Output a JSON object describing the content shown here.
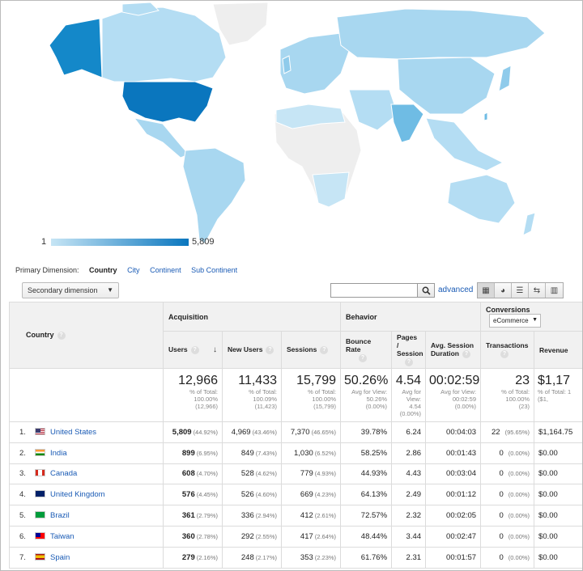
{
  "map": {
    "legend_min": "1",
    "legend_max": "5,809",
    "colors": {
      "low": "#c6e5f5",
      "mid": "#9fd2ed",
      "high": "#0a76be",
      "none": "#eeeeee"
    }
  },
  "dimensions": {
    "label": "Primary Dimension:",
    "options": [
      "Country",
      "City",
      "Continent",
      "Sub Continent"
    ]
  },
  "toolbar": {
    "secondary_dimension": "Secondary dimension",
    "search_value": "",
    "advanced": "advanced"
  },
  "table": {
    "groups": {
      "acquisition": "Acquisition",
      "behavior": "Behavior",
      "conversions": "Conversions",
      "conversions_select": "eCommerce"
    },
    "headers": {
      "country": "Country",
      "users": "Users",
      "new_users": "New Users",
      "sessions": "Sessions",
      "bounce_rate": "Bounce Rate",
      "pages_session": "Pages / Session",
      "avg_session_duration": "Avg. Session Duration",
      "transactions": "Transactions",
      "revenue": "Revenue"
    },
    "totals": {
      "users": {
        "value": "12,966",
        "l1": "% of Total:",
        "l2": "100.00%",
        "l3": "(12,966)"
      },
      "new_users": {
        "value": "11,433",
        "l1": "% of Total:",
        "l2": "100.09%",
        "l3": "(11,423)"
      },
      "sessions": {
        "value": "15,799",
        "l1": "% of Total:",
        "l2": "100.00%",
        "l3": "(15,799)"
      },
      "bounce_rate": {
        "value": "50.26%",
        "l1": "Avg for View:",
        "l2": "50.26%",
        "l3": "(0.00%)"
      },
      "pages_session": {
        "value": "4.54",
        "l1": "Avg for View:",
        "l2": "4.54",
        "l3": "(0.00%)"
      },
      "avg_session_duration": {
        "value": "00:02:59",
        "l1": "Avg for View:",
        "l2": "00:02:59",
        "l3": "(0.00%)"
      },
      "transactions": {
        "value": "23",
        "l1": "% of Total:",
        "l2": "100.00%",
        "l3": "(23)"
      },
      "revenue": {
        "value": "$1,17",
        "l1": "% of Total: 1",
        "l2": "($1,",
        "l3": ""
      }
    },
    "rows": [
      {
        "idx": "1.",
        "country": "United States",
        "flag": "us",
        "users": "5,809",
        "users_pct": "(44.92%)",
        "new_users": "4,969",
        "new_users_pct": "(43.46%)",
        "sessions": "7,370",
        "sessions_pct": "(46.65%)",
        "bounce": "39.78%",
        "pages": "6.24",
        "duration": "00:04:03",
        "transactions": "22",
        "transactions_pct": "(95.65%)",
        "revenue": "$1,164.75"
      },
      {
        "idx": "2.",
        "country": "India",
        "flag": "in",
        "users": "899",
        "users_pct": "(6.95%)",
        "new_users": "849",
        "new_users_pct": "(7.43%)",
        "sessions": "1,030",
        "sessions_pct": "(6.52%)",
        "bounce": "58.25%",
        "pages": "2.86",
        "duration": "00:01:43",
        "transactions": "0",
        "transactions_pct": "(0.00%)",
        "revenue": "$0.00"
      },
      {
        "idx": "3.",
        "country": "Canada",
        "flag": "ca",
        "users": "608",
        "users_pct": "(4.70%)",
        "new_users": "528",
        "new_users_pct": "(4.62%)",
        "sessions": "779",
        "sessions_pct": "(4.93%)",
        "bounce": "44.93%",
        "pages": "4.43",
        "duration": "00:03:04",
        "transactions": "0",
        "transactions_pct": "(0.00%)",
        "revenue": "$0.00"
      },
      {
        "idx": "4.",
        "country": "United Kingdom",
        "flag": "uk",
        "users": "576",
        "users_pct": "(4.45%)",
        "new_users": "526",
        "new_users_pct": "(4.60%)",
        "sessions": "669",
        "sessions_pct": "(4.23%)",
        "bounce": "64.13%",
        "pages": "2.49",
        "duration": "00:01:12",
        "transactions": "0",
        "transactions_pct": "(0.00%)",
        "revenue": "$0.00"
      },
      {
        "idx": "5.",
        "country": "Brazil",
        "flag": "br",
        "users": "361",
        "users_pct": "(2.79%)",
        "new_users": "336",
        "new_users_pct": "(2.94%)",
        "sessions": "412",
        "sessions_pct": "(2.61%)",
        "bounce": "72.57%",
        "pages": "2.32",
        "duration": "00:02:05",
        "transactions": "0",
        "transactions_pct": "(0.00%)",
        "revenue": "$0.00"
      },
      {
        "idx": "6.",
        "country": "Taiwan",
        "flag": "tw",
        "users": "360",
        "users_pct": "(2.78%)",
        "new_users": "292",
        "new_users_pct": "(2.55%)",
        "sessions": "417",
        "sessions_pct": "(2.64%)",
        "bounce": "48.44%",
        "pages": "3.44",
        "duration": "00:02:47",
        "transactions": "0",
        "transactions_pct": "(0.00%)",
        "revenue": "$0.00"
      },
      {
        "idx": "7.",
        "country": "Spain",
        "flag": "es",
        "users": "279",
        "users_pct": "(2.16%)",
        "new_users": "248",
        "new_users_pct": "(2.17%)",
        "sessions": "353",
        "sessions_pct": "(2.23%)",
        "bounce": "61.76%",
        "pages": "2.31",
        "duration": "00:01:57",
        "transactions": "0",
        "transactions_pct": "(0.00%)",
        "revenue": "$0.00"
      }
    ]
  }
}
